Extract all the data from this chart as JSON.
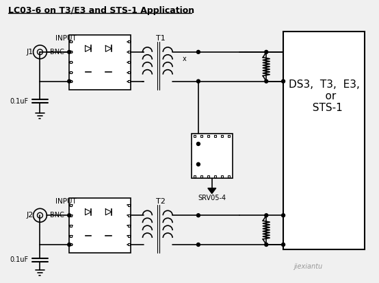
{
  "title": "LC03-6 on T3/E3 and STS-1 Application",
  "bg_color": "#f0f0f0",
  "line_color": "#000000",
  "text_color": "#000000",
  "box_text": "DS3,  T3,  E3,\n    or\n  STS-1",
  "watermark1": "jiexiantu",
  "label_j1": "J1",
  "label_j2": "J2",
  "label_bnc1": "BNC",
  "label_bnc2": "BNC",
  "label_t1": "T1",
  "label_t2": "T2",
  "label_input1": "INPUT",
  "label_input2": "INPUT",
  "label_cap1": "0.1uF",
  "label_cap2": "0.1uF",
  "label_srv": "SRV05-4"
}
